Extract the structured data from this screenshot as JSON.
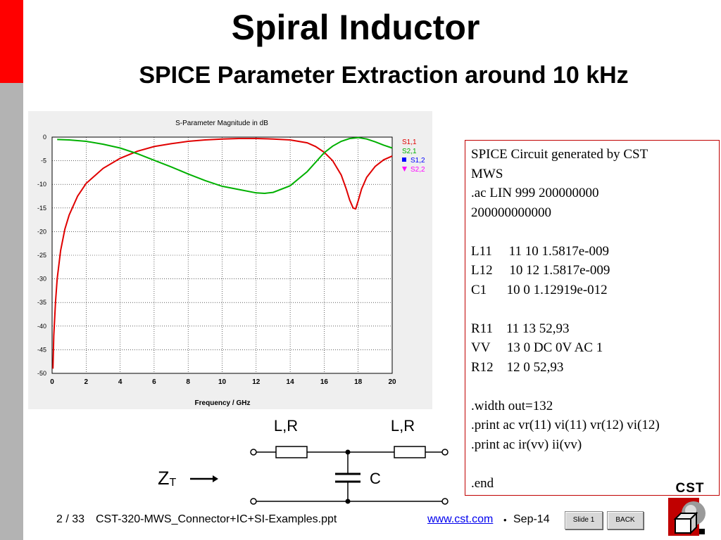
{
  "slide": {
    "title": "Spiral Inductor",
    "subtitle": "SPICE Parameter Extraction around 10 kHz"
  },
  "chart_data": {
    "type": "line",
    "title": "S-Parameter Magnitude in dB",
    "xlabel": "Frequency / GHz",
    "ylabel": "",
    "xlim": [
      0,
      20
    ],
    "ylim": [
      -50,
      0
    ],
    "x_ticks": [
      "0",
      "2",
      "4",
      "6",
      "8",
      "10",
      "12",
      "14",
      "16",
      "18",
      "20"
    ],
    "y_ticks": [
      "0",
      "-5",
      "-10",
      "-15",
      "-20",
      "-25",
      "-30",
      "-35",
      "-40",
      "-45",
      "-50"
    ],
    "grid": true,
    "legend": [
      "S1,1",
      "S2,1",
      "S1,2",
      "S2,2"
    ],
    "legend_placement": "right",
    "series": [
      {
        "name": "S1,1",
        "color": "#e00000",
        "x": [
          0.05,
          0.1,
          0.2,
          0.3,
          0.5,
          0.75,
          1,
          1.5,
          2,
          3,
          4,
          5,
          6,
          7,
          8,
          9,
          10,
          11,
          12,
          13,
          14,
          15,
          15.5,
          16,
          16.5,
          17,
          17.3,
          17.5,
          17.7,
          17.85,
          18,
          18.2,
          18.5,
          19,
          19.5,
          20
        ],
        "y": [
          -49,
          -42,
          -35,
          -30,
          -24,
          -19.5,
          -16.5,
          -12.5,
          -9.8,
          -6.6,
          -4.5,
          -3,
          -2,
          -1.4,
          -0.9,
          -0.6,
          -0.4,
          -0.3,
          -0.3,
          -0.4,
          -0.6,
          -1.2,
          -2,
          -3.2,
          -5,
          -8,
          -11,
          -13.3,
          -15,
          -15.2,
          -13.5,
          -11,
          -8.5,
          -6.2,
          -4.8,
          -4
        ]
      },
      {
        "name": "S2,1",
        "color": "#00b000",
        "x": [
          0.3,
          1,
          2,
          3,
          4,
          5,
          6,
          7,
          8,
          9,
          10,
          11,
          12,
          12.5,
          13,
          14,
          15,
          16,
          16.5,
          17,
          17.5,
          18,
          18.5,
          19,
          19.5,
          20
        ],
        "y": [
          -0.5,
          -0.6,
          -0.9,
          -1.5,
          -2.3,
          -3.5,
          -4.9,
          -6.3,
          -7.8,
          -9.2,
          -10.4,
          -11.1,
          -11.8,
          -11.9,
          -11.7,
          -10.3,
          -7.3,
          -3.3,
          -1.9,
          -0.9,
          -0.3,
          -0.1,
          -0.4,
          -1,
          -1.7,
          -2.3
        ]
      },
      {
        "name": "S1,2",
        "color": "#0000ff",
        "x": [],
        "y": []
      },
      {
        "name": "S2,2",
        "color": "#ff00ff",
        "x": [],
        "y": []
      }
    ]
  },
  "circuit": {
    "label_lr_left": "L,R",
    "label_lr_right": "L,R",
    "label_c": "C",
    "label_z": "Z",
    "label_z_sub": "T"
  },
  "spice": {
    "lines": [
      "SPICE Circuit generated by CST",
      "MWS",
      ".ac LIN 999 200000000",
      "200000000000",
      "",
      "L11     11 10 1.5817e-009",
      "L12     10 12 1.5817e-009",
      "C1      10 0 1.12919e-012",
      "",
      "R11    11 13 52,93",
      "VV     13 0 DC 0V AC 1",
      "R12    12 0 52,93",
      "",
      ".width out=132",
      ".print ac vr(11) vi(11) vr(12) vi(12)",
      ".print ac ir(vv) ii(vv)",
      "",
      ".end"
    ]
  },
  "footer": {
    "page": "2 / 33",
    "filename": "CST-320-MWS_Connector+IC+SI-Examples.ppt",
    "link": "www.cst.com",
    "bullet": "•",
    "date": "Sep-14",
    "slide_button": "Slide 1",
    "back_button": "BACK",
    "logo_text": "CST"
  }
}
